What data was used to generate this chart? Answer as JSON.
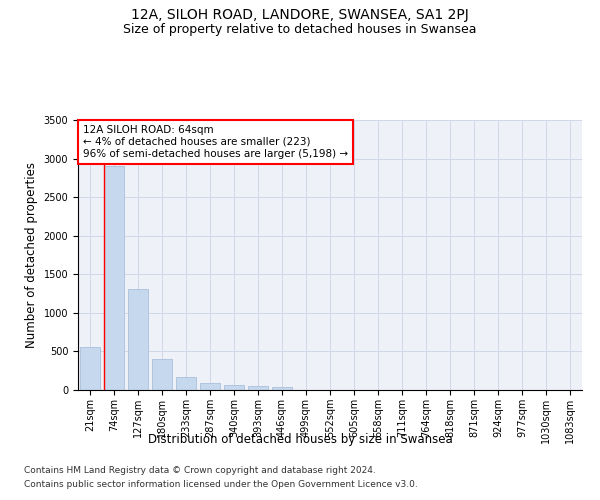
{
  "title": "12A, SILOH ROAD, LANDORE, SWANSEA, SA1 2PJ",
  "subtitle": "Size of property relative to detached houses in Swansea",
  "xlabel": "Distribution of detached houses by size in Swansea",
  "ylabel": "Number of detached properties",
  "categories": [
    "21sqm",
    "74sqm",
    "127sqm",
    "180sqm",
    "233sqm",
    "287sqm",
    "340sqm",
    "393sqm",
    "446sqm",
    "499sqm",
    "552sqm",
    "605sqm",
    "658sqm",
    "711sqm",
    "764sqm",
    "818sqm",
    "871sqm",
    "924sqm",
    "977sqm",
    "1030sqm",
    "1083sqm"
  ],
  "bar_heights": [
    560,
    2910,
    1310,
    400,
    175,
    90,
    60,
    55,
    45,
    0,
    0,
    0,
    0,
    0,
    0,
    0,
    0,
    0,
    0,
    0,
    0
  ],
  "bar_color": "#c5d8ed",
  "bar_edgecolor": "#a0b8d8",
  "grid_color": "#d0d8e8",
  "background_color": "#eef2f8",
  "annotation_box_text": "12A SILOH ROAD: 64sqm\n← 4% of detached houses are smaller (223)\n96% of semi-detached houses are larger (5,198) →",
  "property_line_x": 0.57,
  "ylim": [
    0,
    3500
  ],
  "yticks": [
    0,
    500,
    1000,
    1500,
    2000,
    2500,
    3000,
    3500
  ],
  "footer_line1": "Contains HM Land Registry data © Crown copyright and database right 2024.",
  "footer_line2": "Contains public sector information licensed under the Open Government Licence v3.0.",
  "title_fontsize": 10,
  "subtitle_fontsize": 9,
  "axis_label_fontsize": 8.5,
  "tick_fontsize": 7,
  "annotation_fontsize": 7.5,
  "footer_fontsize": 6.5
}
